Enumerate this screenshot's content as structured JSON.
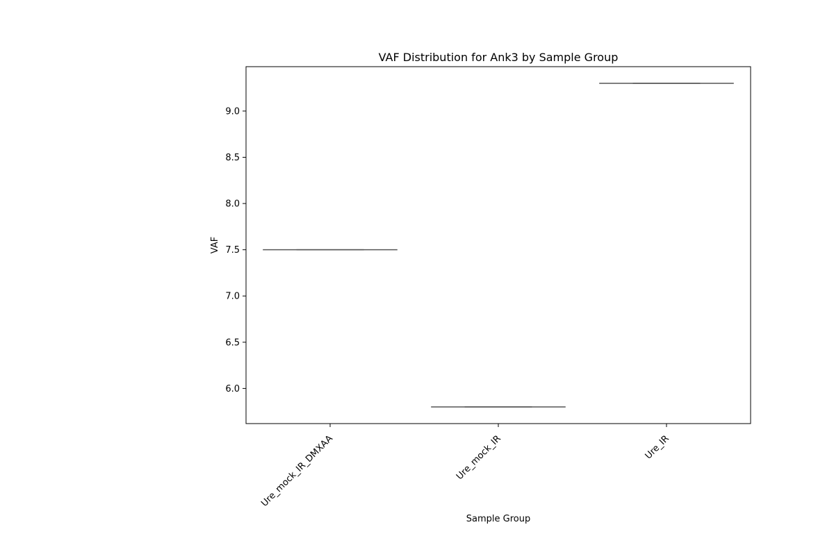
{
  "chart_data": {
    "type": "box",
    "title": "VAF Distribution for Ank3 by Sample Group",
    "xlabel": "Sample Group",
    "ylabel": "VAF",
    "categories": [
      "Ure_mock_IR_DMXAA",
      "Ure_mock_IR",
      "Ure_IR"
    ],
    "values": [
      7.5,
      5.8,
      9.3
    ],
    "ylim": [
      5.62,
      9.48
    ],
    "yticks": [
      6.0,
      6.5,
      7.0,
      7.5,
      8.0,
      8.5,
      9.0
    ],
    "ytick_labels": [
      "6.0",
      "6.5",
      "7.0",
      "7.5",
      "8.0",
      "8.5",
      "9.0"
    ],
    "grid": false,
    "legend": "none",
    "colors": {
      "median": "#555555",
      "axes": "#000000",
      "background": "#ffffff"
    }
  }
}
